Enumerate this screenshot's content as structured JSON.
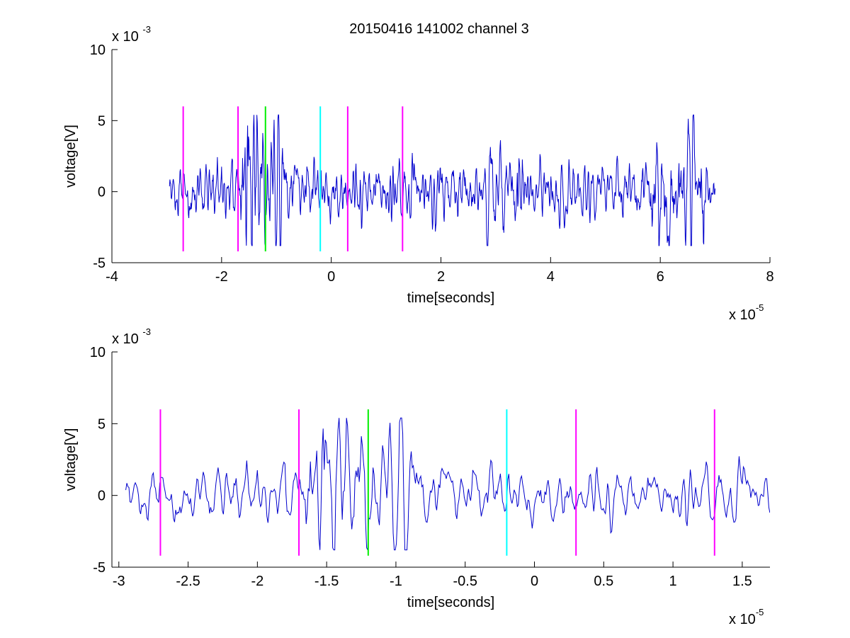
{
  "figure": {
    "title": "20150416 141002 channel 3"
  },
  "colors": {
    "trace": "#0000cc",
    "magenta": "#ff00ff",
    "green": "#00ee00",
    "cyan": "#00ffff",
    "axis": "#000000"
  },
  "chart_data": [
    {
      "type": "line",
      "title": "20150416 141002 channel 3",
      "xlabel": "time[seconds]",
      "ylabel": "voltage[V]",
      "x_multiplier_label": "x 10",
      "x_multiplier_exp": "-5",
      "y_multiplier_label": "x 10",
      "y_multiplier_exp": "-3",
      "xlim": [
        -4,
        8
      ],
      "ylim": [
        -5,
        10
      ],
      "x_ticks": [
        -4,
        -2,
        0,
        2,
        4,
        6,
        8
      ],
      "x_tick_labels": [
        "-4",
        "-2",
        "0",
        "2",
        "4",
        "6",
        "8"
      ],
      "y_ticks": [
        -5,
        0,
        5,
        10
      ],
      "y_tick_labels": [
        "-5",
        "0",
        "5",
        "10"
      ],
      "grid": false,
      "series": [
        {
          "color": "#0000cc",
          "x_range": [
            -2.95,
            7.0
          ],
          "y_range_approx": [
            -3.8,
            5.4
          ]
        }
      ],
      "markers": [
        {
          "x": -2.7,
          "y_from": -4.2,
          "y_to": 6.0,
          "color": "#ff00ff"
        },
        {
          "x": -1.7,
          "y_from": -4.2,
          "y_to": 6.0,
          "color": "#ff00ff"
        },
        {
          "x": -1.2,
          "y_from": -4.2,
          "y_to": 6.0,
          "color": "#00ee00"
        },
        {
          "x": -0.2,
          "y_from": -4.2,
          "y_to": 6.0,
          "color": "#00ffff"
        },
        {
          "x": 0.3,
          "y_from": -4.2,
          "y_to": 6.0,
          "color": "#ff00ff"
        },
        {
          "x": 1.3,
          "y_from": -4.2,
          "y_to": 6.0,
          "color": "#ff00ff"
        }
      ]
    },
    {
      "type": "line",
      "title": "",
      "xlabel": "time[seconds]",
      "ylabel": "voltage[V]",
      "x_multiplier_label": "x 10",
      "x_multiplier_exp": "-5",
      "y_multiplier_label": "x 10",
      "y_multiplier_exp": "-3",
      "xlim": [
        -3.05,
        1.7
      ],
      "ylim": [
        -5,
        10
      ],
      "x_ticks": [
        -3,
        -2.5,
        -2,
        -1.5,
        -1,
        -0.5,
        0,
        0.5,
        1,
        1.5
      ],
      "x_tick_labels": [
        "-3",
        "-2.5",
        "-2",
        "-1.5",
        "-1",
        "-0.5",
        "0",
        "0.5",
        "1",
        "1.5"
      ],
      "y_ticks": [
        -5,
        0,
        5,
        10
      ],
      "y_tick_labels": [
        "-5",
        "0",
        "5",
        "10"
      ],
      "grid": false,
      "series": [
        {
          "color": "#0000cc",
          "x_range": [
            -2.95,
            1.7
          ],
          "y_range_approx": [
            -3.8,
            5.4
          ]
        }
      ],
      "markers": [
        {
          "x": -2.7,
          "y_from": -4.2,
          "y_to": 6.0,
          "color": "#ff00ff"
        },
        {
          "x": -1.7,
          "y_from": -4.2,
          "y_to": 6.0,
          "color": "#ff00ff"
        },
        {
          "x": -1.2,
          "y_from": -4.2,
          "y_to": 6.0,
          "color": "#00ee00"
        },
        {
          "x": -0.2,
          "y_from": -4.2,
          "y_to": 6.0,
          "color": "#00ffff"
        },
        {
          "x": 0.3,
          "y_from": -4.2,
          "y_to": 6.0,
          "color": "#ff00ff"
        },
        {
          "x": 1.3,
          "y_from": -4.2,
          "y_to": 6.0,
          "color": "#ff00ff"
        }
      ]
    }
  ]
}
